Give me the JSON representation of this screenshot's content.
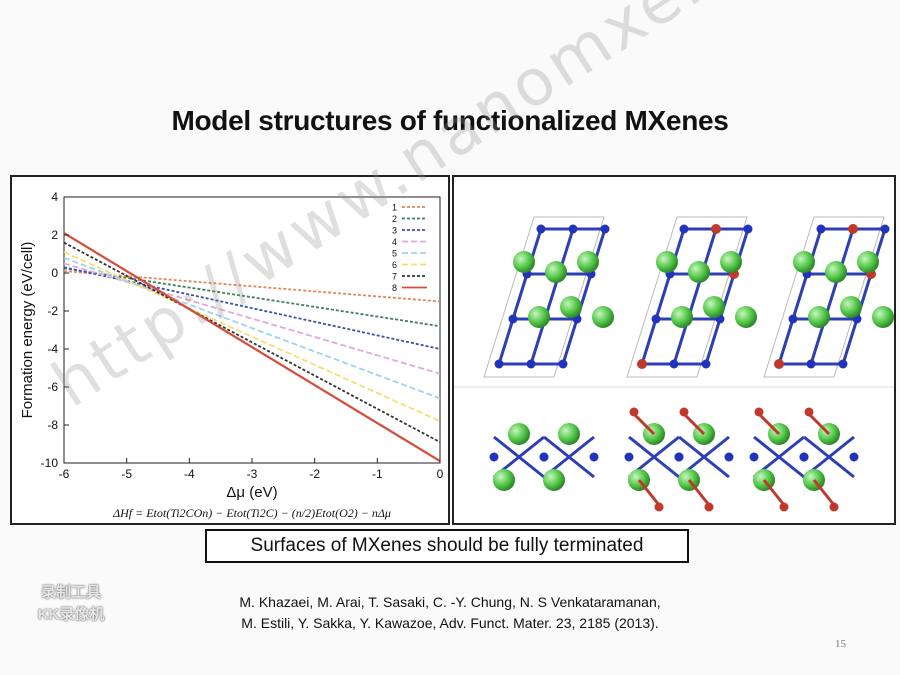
{
  "slide": {
    "title": "Model structures of functionalized MXenes",
    "callout": "Surfaces of MXenes should be fully terminated",
    "reference_line1": "M. Khazaei, M. Arai, T. Sasaki, C. -Y. Chung, N. S Venkataramanan,",
    "reference_line2": "M. Estili, Y. Sakka, Y. Kawazoe, Adv. Funct. Mater. 23, 2185 (2013).",
    "page_number": "15",
    "watermark": "http://www.nanomxenes.com",
    "logo_line1": "录制工具",
    "logo_line2": "KK录像机"
  },
  "chart_data": {
    "type": "line",
    "xlabel": "Δμ (eV)",
    "ylabel": "Formation energy (eV/cell)",
    "xlim": [
      -6,
      0
    ],
    "ylim": [
      -10,
      4
    ],
    "xticks": [
      "-6",
      "-5",
      "-4",
      "-3",
      "-2",
      "-1",
      "0"
    ],
    "yticks": [
      "4",
      "2",
      "0",
      "-2",
      "-4",
      "-6",
      "-8",
      "-10"
    ],
    "formula": "ΔHf = Etot(Ti2COn) − Etot(Ti2C) − (n/2)Etot(O2) − nΔμ",
    "legend_position": "top-right",
    "x": [
      -6,
      0
    ],
    "series": [
      {
        "name": "1",
        "color": "#e08a5a",
        "dash": "3,2",
        "values": [
          0.1,
          -1.5
        ]
      },
      {
        "name": "2",
        "color": "#3f7f5a",
        "dash": "3,2",
        "values": [
          0.25,
          -2.8
        ]
      },
      {
        "name": "3",
        "color": "#3a4fb0",
        "dash": "3,2",
        "values": [
          0.3,
          -4.0
        ]
      },
      {
        "name": "4",
        "color": "#e0a8e0",
        "dash": "6,3",
        "values": [
          0.5,
          -5.3
        ]
      },
      {
        "name": "5",
        "color": "#9ed3ea",
        "dash": "6,3",
        "values": [
          0.8,
          -6.6
        ]
      },
      {
        "name": "6",
        "color": "#f0e070",
        "dash": "6,3",
        "values": [
          1.1,
          -7.8
        ]
      },
      {
        "name": "7",
        "color": "#333333",
        "dash": "3,2",
        "values": [
          1.6,
          -8.9
        ]
      },
      {
        "name": "8",
        "color": "#d64c3a",
        "dash": "",
        "values": [
          2.1,
          -9.9
        ]
      }
    ]
  }
}
